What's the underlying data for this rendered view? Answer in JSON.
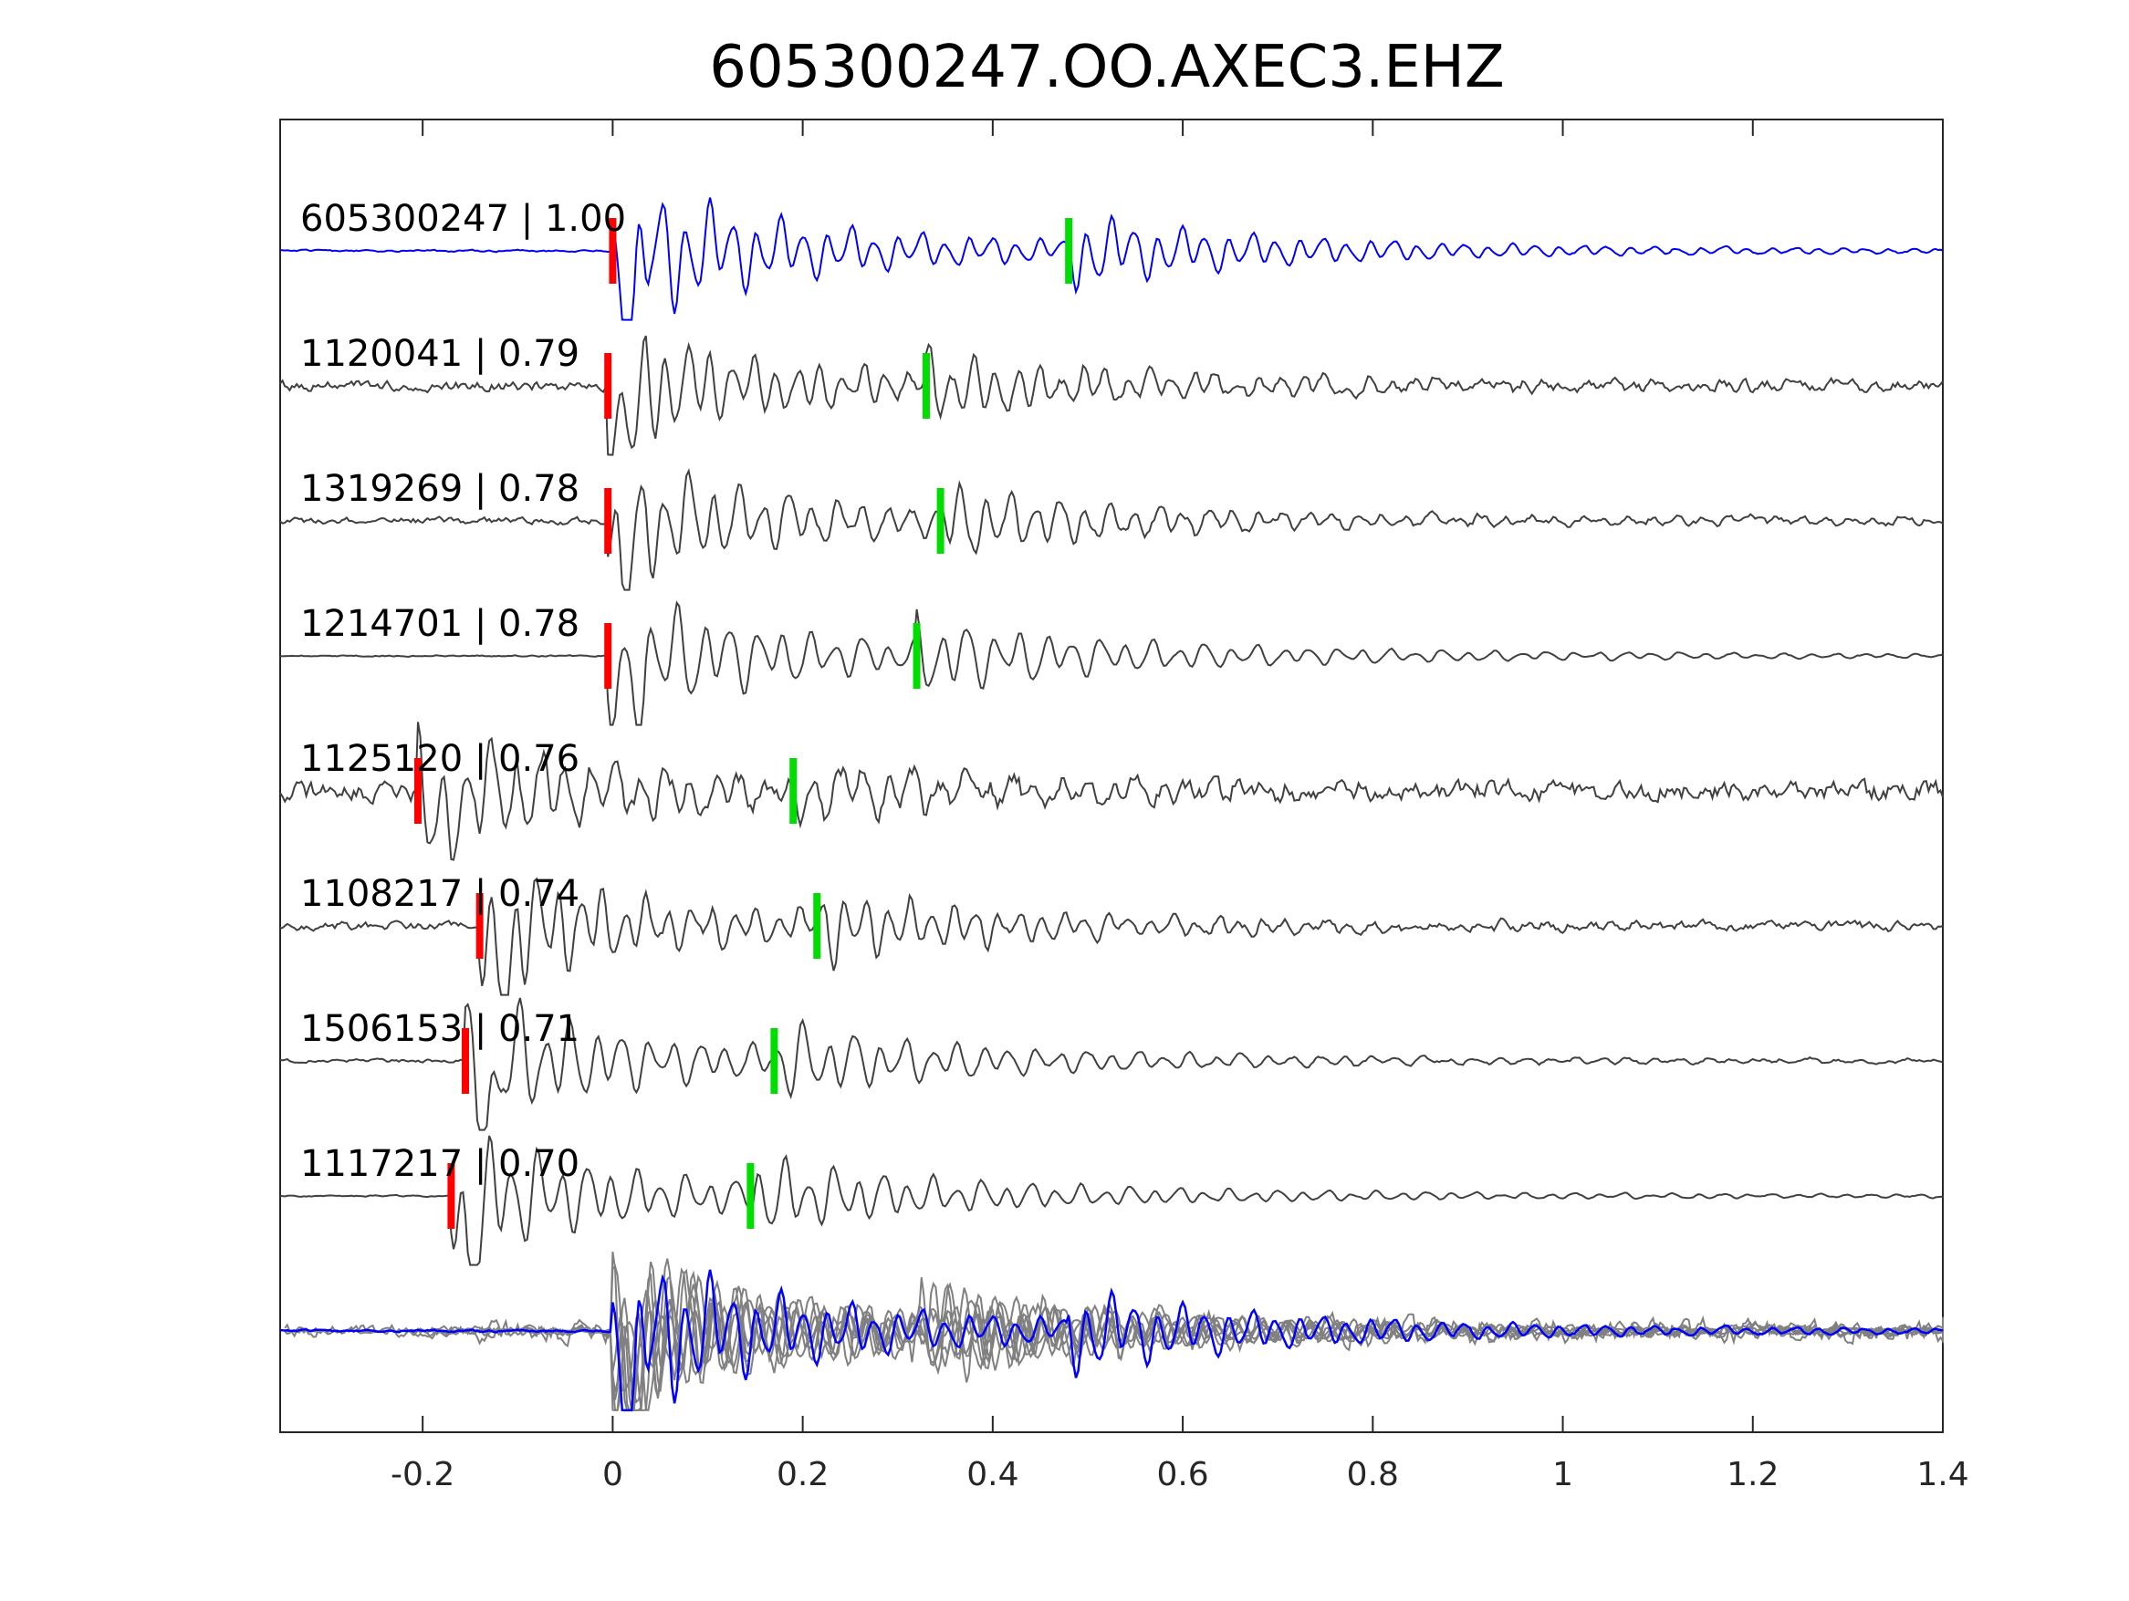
{
  "chart_data": {
    "type": "line",
    "title": "605300247.OO.AXEC3.EHZ",
    "xlabel": "",
    "ylabel": "",
    "xlim": [
      -0.35,
      1.4
    ],
    "xticks": [
      -0.2,
      0,
      0.2,
      0.4,
      0.6,
      0.8,
      1,
      1.2,
      1.4
    ],
    "xtick_labels": [
      "-0.2",
      "0",
      "0.2",
      "0.4",
      "0.6",
      "0.8",
      "1",
      "1.2",
      "1.4"
    ],
    "grid": false,
    "colors": {
      "template": "#0000ff",
      "neighbor": "#404040",
      "overlay_neighbor": "#808080",
      "p_pick": "#ff0000",
      "s_pick": "#00dd00"
    },
    "traces": [
      {
        "id": "605300247",
        "cc": "1.00",
        "label": "605300247 | 1.00",
        "p_pick": 0.0,
        "s_pick": 0.48,
        "signal_start": 0.0,
        "noise_amp": 0.03,
        "peak_amp": 1.0,
        "color": "template"
      },
      {
        "id": "1120041",
        "cc": "0.79",
        "label": "1120041 | 0.79",
        "p_pick": -0.005,
        "s_pick": 0.33,
        "signal_start": -0.005,
        "noise_amp": 0.15,
        "peak_amp": 0.85,
        "color": "neighbor"
      },
      {
        "id": "1319269",
        "cc": "0.78",
        "label": "1319269 | 0.78",
        "p_pick": -0.005,
        "s_pick": 0.345,
        "signal_start": -0.005,
        "noise_amp": 0.1,
        "peak_amp": 0.9,
        "color": "neighbor"
      },
      {
        "id": "1214701",
        "cc": "0.78",
        "label": "1214701 | 0.78",
        "p_pick": -0.005,
        "s_pick": 0.32,
        "signal_start": -0.005,
        "noise_amp": 0.02,
        "peak_amp": 0.9,
        "color": "neighbor"
      },
      {
        "id": "1125120",
        "cc": "0.76",
        "label": "1125120 | 0.76",
        "p_pick": -0.205,
        "s_pick": 0.19,
        "signal_start": -0.205,
        "noise_amp": 0.3,
        "peak_amp": 0.9,
        "color": "neighbor"
      },
      {
        "id": "1108217",
        "cc": "0.74",
        "label": "1108217 | 0.74",
        "p_pick": -0.14,
        "s_pick": 0.215,
        "signal_start": -0.14,
        "noise_amp": 0.12,
        "peak_amp": 0.9,
        "color": "neighbor"
      },
      {
        "id": "1506153",
        "cc": "0.71",
        "label": "1506153 | 0.71",
        "p_pick": -0.155,
        "s_pick": 0.17,
        "signal_start": -0.155,
        "noise_amp": 0.05,
        "peak_amp": 0.9,
        "color": "neighbor"
      },
      {
        "id": "1117217",
        "cc": "0.70",
        "label": "1117217 | 0.70",
        "p_pick": -0.17,
        "s_pick": 0.145,
        "signal_start": -0.17,
        "noise_amp": 0.02,
        "peak_amp": 0.9,
        "color": "neighbor"
      }
    ],
    "overlay": {
      "aligned_on": "p_pick",
      "template_on_top": true
    }
  }
}
